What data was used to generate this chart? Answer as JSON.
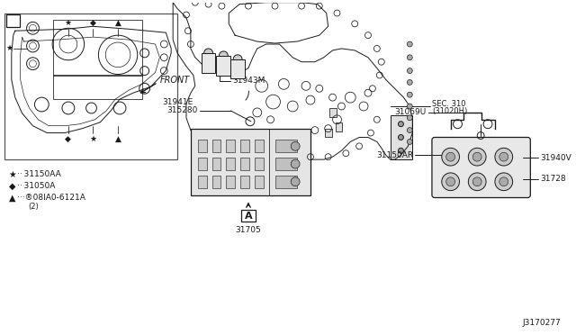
{
  "background_color": "#ffffff",
  "diagram_id": "J3170277",
  "text_color": "#1a1a1a",
  "line_color": "#1a1a1a",
  "line_width": 0.7,
  "labels": {
    "SEC310_line1": "SEC. 310",
    "SEC310_line2": "(31020H)",
    "part_31943M": "31943M",
    "part_31941E": "31941E",
    "part_315280": "315280",
    "part_31705": "31705",
    "part_31069U": "31069U",
    "part_31150AR": "31150AR",
    "part_31940V": "31940V",
    "part_31728": "31728",
    "front": "FRONT",
    "legend1_sym": "★",
    "legend1_txt": "·· 31150AA",
    "legend2_sym": "◆",
    "legend2_txt": "·· 31050A",
    "legend3_sym": "▲",
    "legend3_txt": "···®08IA0-6121A",
    "legend3_sub": "(2)",
    "view_A": "A"
  }
}
